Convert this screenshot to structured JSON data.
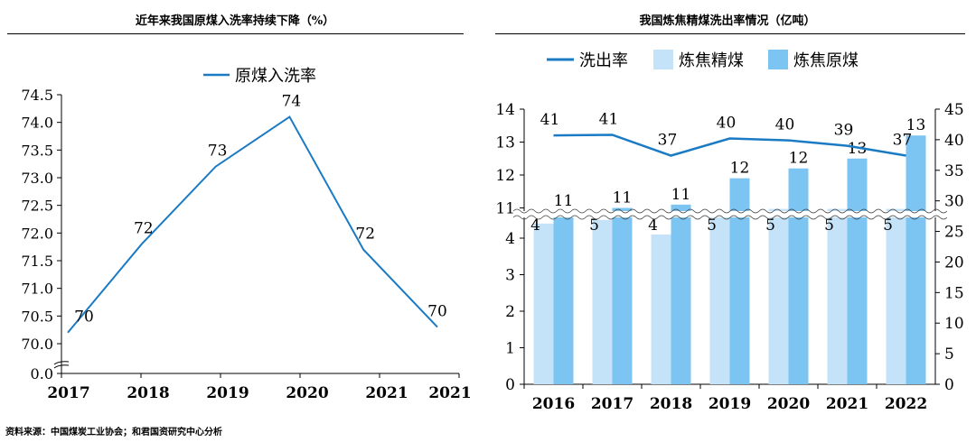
{
  "left_title": "近年来我国原煤入洗率持续下降（%）",
  "right_title": "我国炼焦精煤洗出率情况（亿吨）",
  "source": "资料来源：中国煤炭工业协会；和君国资研究中心分析",
  "colors": {
    "line": "#1a7bc4",
    "refined": "#c5e3f8",
    "raw": "#7cc4f2",
    "axis": "#000000"
  },
  "chart_data": [
    {
      "type": "line",
      "categories": [
        "2017",
        "2018",
        "2019",
        "2020",
        "2021",
        "2021"
      ],
      "series": [
        {
          "name": "原煤入洗率",
          "values": [
            70.2,
            71.8,
            73.2,
            74.1,
            71.7,
            70.3
          ],
          "labels": [
            "70",
            "72",
            "73",
            "74",
            "72",
            "70"
          ]
        }
      ],
      "y_ticks": [
        "74.5",
        "74.0",
        "73.5",
        "73.0",
        "72.5",
        "72.0",
        "71.5",
        "71.0",
        "70.5",
        "70.0",
        "0.0"
      ],
      "ylim": [
        70.0,
        74.5
      ],
      "axis_break": true,
      "legend": "top-center"
    },
    {
      "type": "bar",
      "categories": [
        "2016",
        "2017",
        "2018",
        "2019",
        "2020",
        "2021",
        "2022"
      ],
      "series": [
        {
          "name": "洗出率",
          "type": "line",
          "axis": "right",
          "values": [
            40.7,
            40.8,
            37.4,
            40.2,
            39.9,
            39.0,
            37.4
          ],
          "labels": [
            "41",
            "41",
            "37",
            "40",
            "40",
            "39",
            "37"
          ]
        },
        {
          "name": "炼焦精煤",
          "type": "bar",
          "axis": "left",
          "values": [
            4.4,
            4.5,
            4.1,
            4.7,
            4.8,
            4.8,
            4.8
          ],
          "labels": [
            "4",
            "5",
            "4",
            "5",
            "5",
            "5",
            "5"
          ]
        },
        {
          "name": "炼焦原煤",
          "type": "bar",
          "axis": "left",
          "values": [
            10.9,
            11.0,
            11.1,
            11.9,
            12.2,
            12.5,
            13.2
          ],
          "labels": [
            "11",
            "11",
            "11",
            "12",
            "12",
            "13",
            "13"
          ]
        }
      ],
      "y_left_ticks": [
        "14",
        "13",
        "12",
        "11",
        "4",
        "3",
        "2",
        "1",
        "0"
      ],
      "y_right_ticks": [
        "45",
        "40",
        "35",
        "30",
        "25",
        "20",
        "15",
        "10",
        "5",
        "0"
      ],
      "ylim_right": [
        0,
        45
      ],
      "axis_break": true,
      "legend": "top"
    }
  ]
}
